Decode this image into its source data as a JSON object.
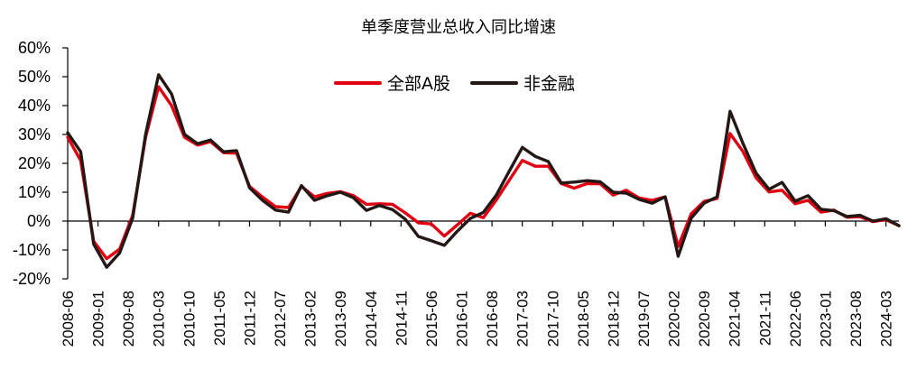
{
  "chart_data": {
    "type": "line",
    "title": "单季度营业总收入同比增速",
    "xlabel": "",
    "ylabel": "",
    "ylim": [
      -20,
      60
    ],
    "yticks": [
      "60%",
      "50%",
      "40%",
      "30%",
      "20%",
      "10%",
      "0%",
      "-10%",
      "-20%"
    ],
    "ytick_values": [
      60,
      50,
      40,
      30,
      20,
      10,
      0,
      -10,
      -20
    ],
    "grid": false,
    "legend_position": "top-center",
    "x_tick_labels": [
      "2008-06",
      "2009-01",
      "2009-08",
      "2010-03",
      "2010-10",
      "2011-05",
      "2011-12",
      "2012-07",
      "2013-02",
      "2013-09",
      "2014-04",
      "2014-11",
      "2015-06",
      "2016-01",
      "2016-08",
      "2017-03",
      "2017-10",
      "2018-05",
      "2018-12",
      "2019-07",
      "2020-02",
      "2020-09",
      "2021-04",
      "2021-11",
      "2022-06",
      "2023-01",
      "2023-08",
      "2024-03"
    ],
    "x": [
      "2008-06",
      "2008-09",
      "2008-12",
      "2009-03",
      "2009-06",
      "2009-09",
      "2009-12",
      "2010-03",
      "2010-06",
      "2010-09",
      "2010-12",
      "2011-03",
      "2011-06",
      "2011-09",
      "2011-12",
      "2012-03",
      "2012-06",
      "2012-09",
      "2012-12",
      "2013-03",
      "2013-06",
      "2013-09",
      "2013-12",
      "2014-03",
      "2014-06",
      "2014-09",
      "2014-12",
      "2015-03",
      "2015-06",
      "2015-09",
      "2015-12",
      "2016-03",
      "2016-06",
      "2016-09",
      "2016-12",
      "2017-03",
      "2017-06",
      "2017-09",
      "2017-12",
      "2018-03",
      "2018-06",
      "2018-09",
      "2018-12",
      "2019-03",
      "2019-06",
      "2019-09",
      "2019-12",
      "2020-03",
      "2020-06",
      "2020-09",
      "2020-12",
      "2021-03",
      "2021-06",
      "2021-09",
      "2021-12",
      "2022-03",
      "2022-06",
      "2022-09",
      "2022-12",
      "2023-03",
      "2023-06",
      "2023-09",
      "2023-12",
      "2024-03",
      "2024-06"
    ],
    "series": [
      {
        "name": "全部A股",
        "color": "#e00012",
        "values": [
          29,
          21,
          -7,
          -13,
          -9.7,
          2,
          29,
          46.5,
          40,
          29,
          26.3,
          27.5,
          23.7,
          23.5,
          12,
          8.3,
          5,
          4.7,
          12,
          8.4,
          9.6,
          10.2,
          8.8,
          5.8,
          6,
          5.8,
          2.8,
          -0.6,
          -1,
          -5.2,
          -1.3,
          2.7,
          1.2,
          7.3,
          14.2,
          21,
          19,
          19,
          13,
          11.4,
          13,
          12.9,
          9,
          10.7,
          8,
          7.2,
          8.4,
          -8.8,
          2.5,
          6.8,
          7.8,
          30.3,
          24,
          15,
          10.1,
          10.7,
          6,
          7.2,
          3.1,
          3.8,
          1.3,
          1.5,
          -0.2,
          0.5,
          -1.6
        ]
      },
      {
        "name": "非金融",
        "color": "#231815",
        "values": [
          30.6,
          24,
          -8,
          -16,
          -11,
          1,
          30,
          50.7,
          44,
          30,
          26.8,
          28.1,
          24,
          24.4,
          11.5,
          7.2,
          3.8,
          3.1,
          12.3,
          7.2,
          8.8,
          10,
          8.1,
          3.7,
          5.4,
          4,
          0.6,
          -5.3,
          -6.8,
          -8.4,
          -3.5,
          0.9,
          3,
          9,
          17.3,
          25.5,
          22.4,
          20.6,
          13.2,
          13.5,
          14,
          13.6,
          10,
          9.7,
          7.5,
          6.2,
          8.4,
          -12.2,
          1,
          6.2,
          8.4,
          38,
          26.8,
          16.6,
          11,
          13.4,
          6.9,
          8.8,
          4.1,
          3.6,
          1.6,
          2,
          0,
          0.8,
          -1.6
        ]
      }
    ]
  },
  "legend": {
    "items": [
      {
        "label": "全部A股",
        "color": "#e00012"
      },
      {
        "label": "非金融",
        "color": "#231815"
      }
    ]
  }
}
